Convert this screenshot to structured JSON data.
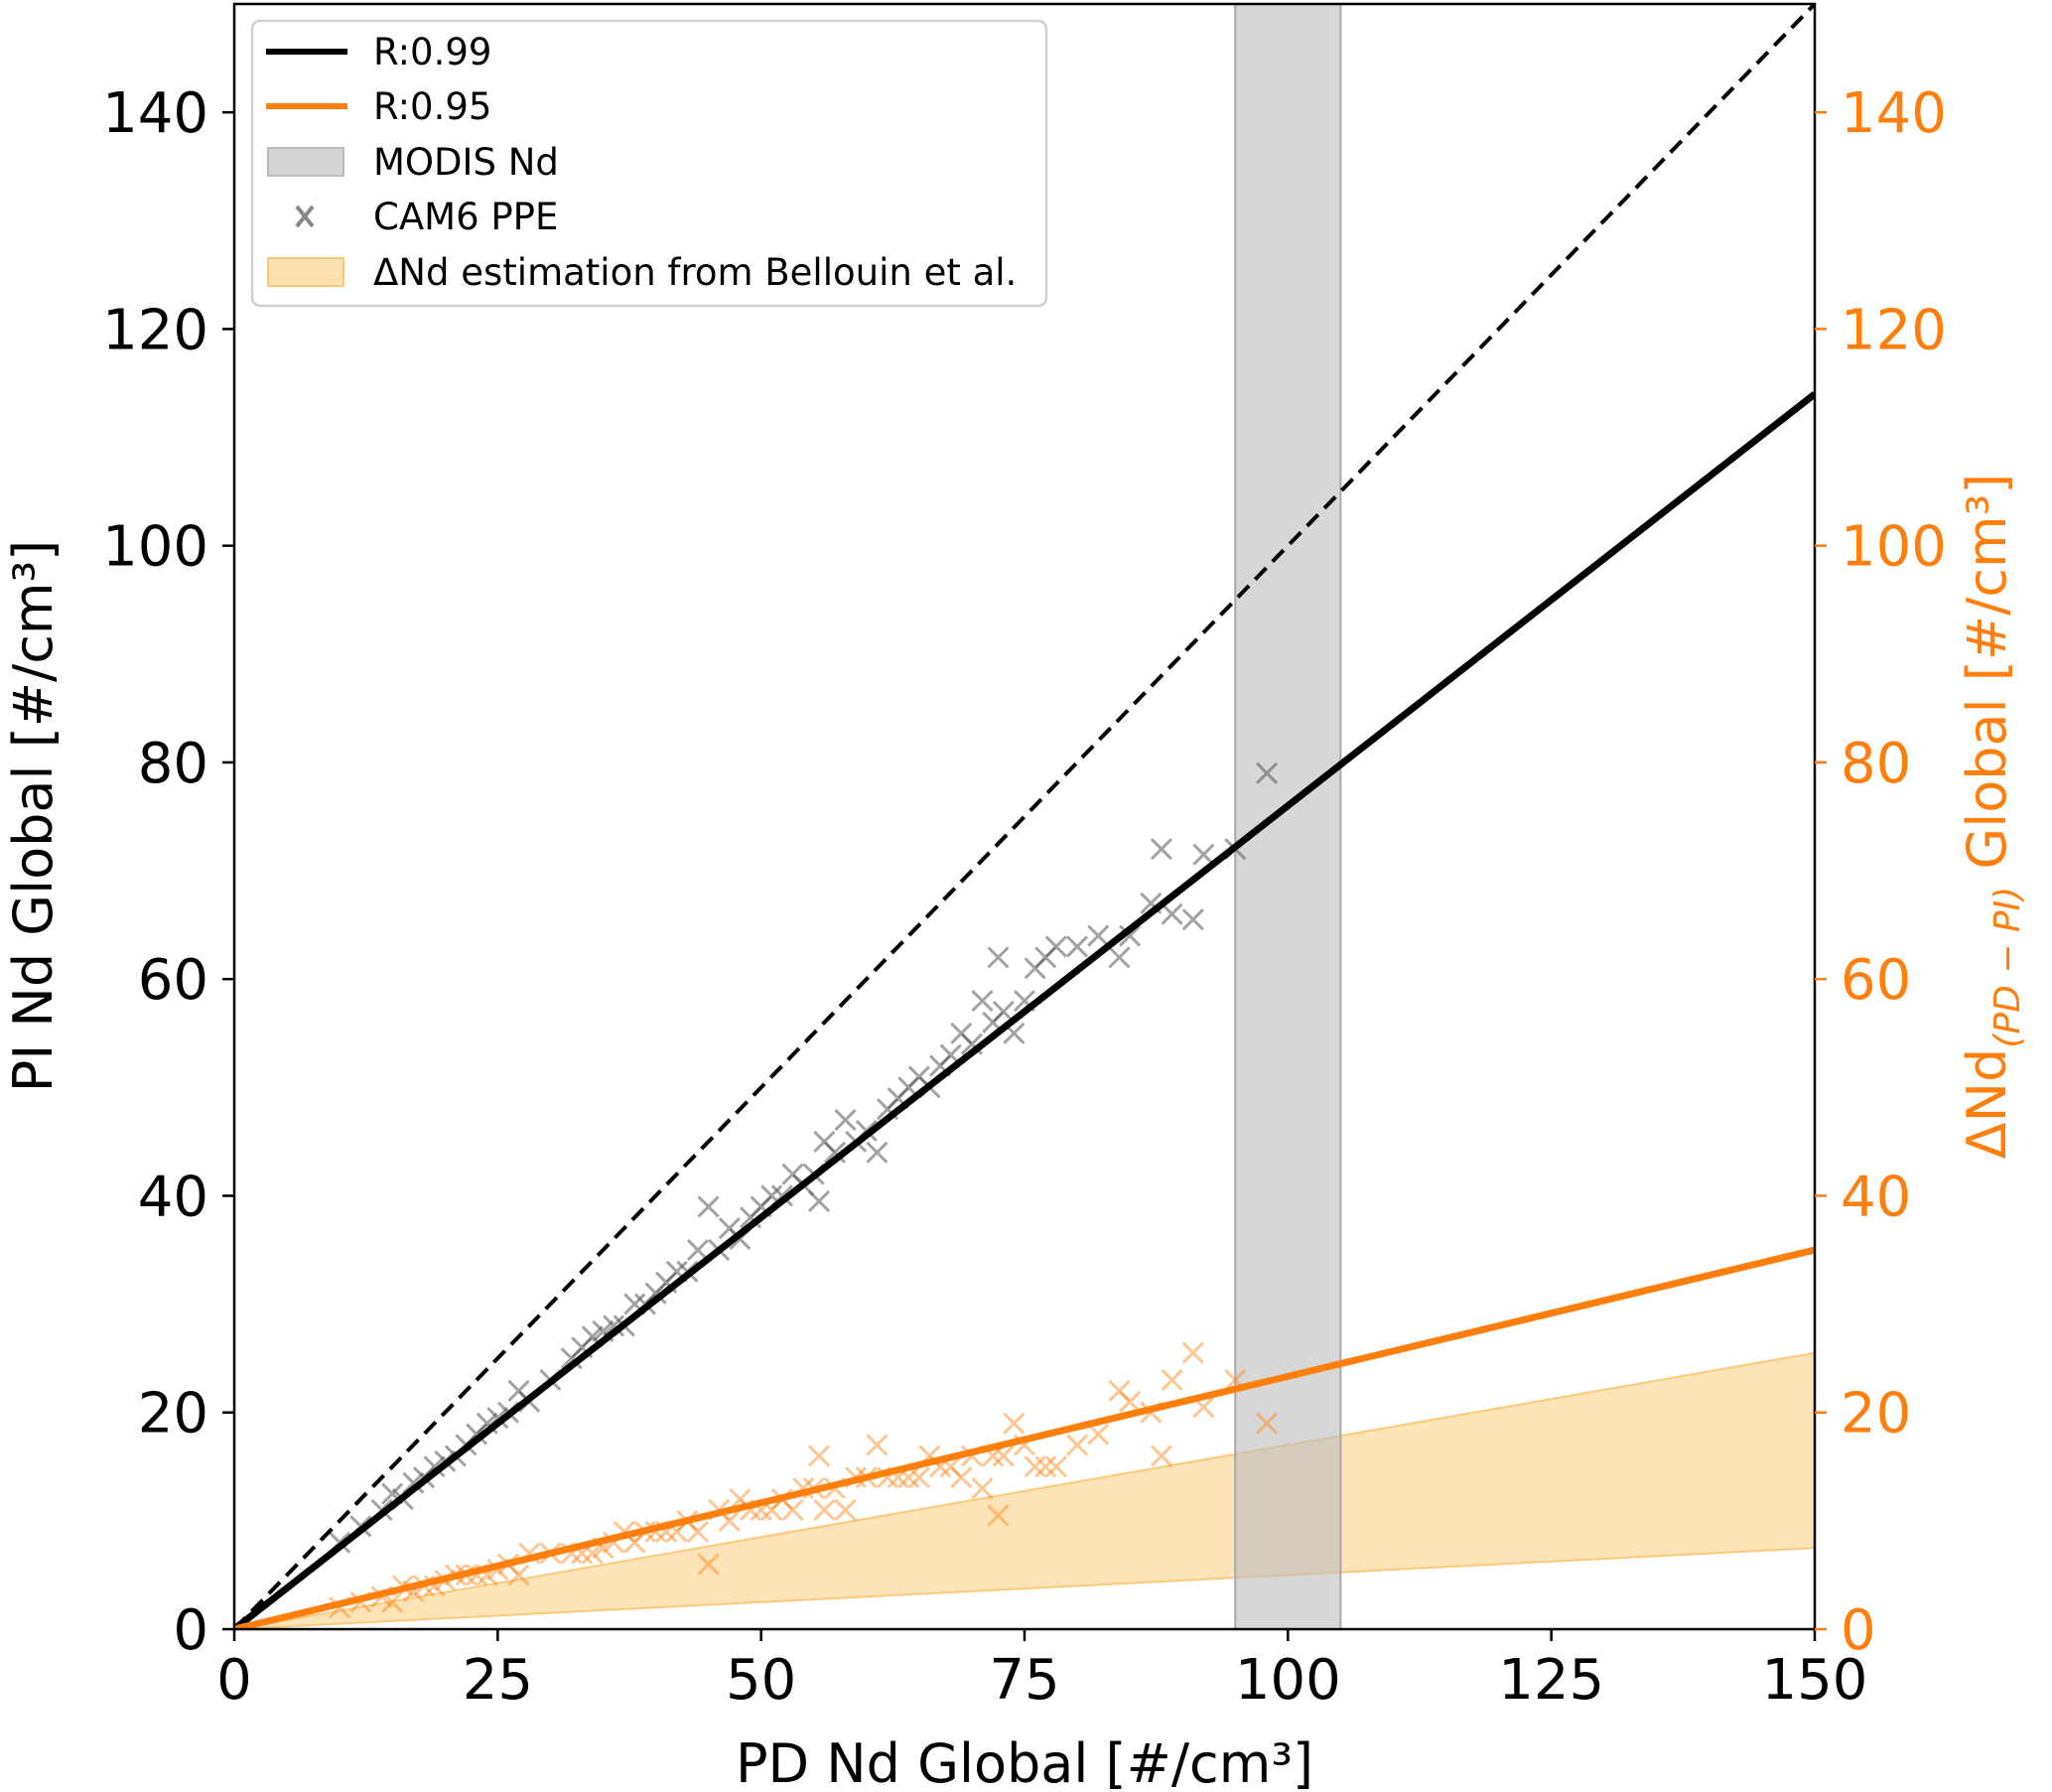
{
  "chart_data": {
    "type": "scatter",
    "title": "",
    "xlabel": "PD Nd Global [#/cm³]",
    "ylabel_left": "PI Nd Global [#/cm³]",
    "ylabel_right": {
      "main": "ΔNd",
      "sub": "(PD − PI)",
      "rest": " Global [#/cm³]"
    },
    "xlim": [
      0,
      150
    ],
    "ylim": [
      0,
      150
    ],
    "ylim_right": [
      0,
      150
    ],
    "x_ticks": [
      "0",
      "25",
      "50",
      "75",
      "100",
      "125",
      "150"
    ],
    "y_ticks": [
      "0",
      "20",
      "40",
      "60",
      "80",
      "100",
      "120",
      "140"
    ],
    "y_ticks_right": [
      "0",
      "20",
      "40",
      "60",
      "80",
      "100",
      "120",
      "140"
    ],
    "grid": false,
    "legend_placement": "top-left",
    "legend": [
      {
        "label": "R:0.99",
        "kind": "line",
        "color": "#000000"
      },
      {
        "label": "R:0.95",
        "kind": "line",
        "color": "#ff7f0e"
      },
      {
        "label": "MODIS Nd",
        "kind": "patch",
        "color": "#d6d6d6"
      },
      {
        "label": "CAM6 PPE",
        "kind": "marker",
        "color": "#808080"
      },
      {
        "label": "ΔNd estimation from Bellouin et al.",
        "kind": "patch",
        "color": "#fde0b0"
      }
    ],
    "one_to_one_line": {
      "x": [
        0,
        150
      ],
      "y": [
        0,
        150
      ],
      "style": "dashed",
      "color": "#000000"
    },
    "fit_pi": {
      "x": [
        0,
        150
      ],
      "y": [
        0,
        114
      ],
      "color": "#000000",
      "r": 0.99
    },
    "fit_delta": {
      "x": [
        0,
        150
      ],
      "y": [
        0,
        35
      ],
      "color": "#ff7f0e",
      "r": 0.95
    },
    "modis_band": {
      "xmin": 95,
      "xmax": 105,
      "color": "#d6d6d6"
    },
    "bellouin_band": {
      "x": [
        0,
        150
      ],
      "lower": [
        0,
        7.5
      ],
      "upper": [
        0,
        25.5
      ],
      "color": "#fde0b0"
    },
    "series": [
      {
        "name": "CAM6 PPE PI",
        "color": "#555555",
        "x": [
          10,
          12,
          14,
          15,
          16,
          17,
          18,
          19,
          20,
          21,
          22,
          23,
          24,
          25,
          26,
          27,
          28,
          30,
          32,
          33,
          34,
          35,
          36,
          37,
          38,
          39,
          40,
          41,
          42,
          43,
          44,
          45,
          46,
          47,
          48,
          49,
          50,
          51,
          52,
          53,
          54,
          55,
          55.5,
          56,
          57,
          58,
          59,
          60,
          61,
          62,
          63,
          64,
          65,
          66,
          67,
          68,
          69,
          70,
          71,
          72,
          72.5,
          73,
          74,
          75,
          76,
          77,
          78,
          80,
          82,
          84,
          85,
          87,
          88,
          89,
          91,
          92,
          95,
          98
        ],
        "y": [
          8,
          9.5,
          11,
          12.5,
          12,
          13.5,
          14,
          15,
          15.5,
          16,
          17,
          18,
          19,
          19.5,
          20,
          22,
          21,
          23,
          25,
          26,
          27,
          27.5,
          28,
          28,
          30,
          30,
          31,
          32,
          33,
          33,
          35,
          39,
          35,
          37,
          36,
          38,
          39,
          40,
          40,
          42,
          41,
          42,
          39.5,
          45,
          44,
          47,
          45,
          46,
          44,
          48,
          49,
          50,
          51,
          50,
          52,
          53,
          55,
          54,
          58,
          56,
          62,
          57,
          55,
          58,
          61,
          62,
          63,
          63,
          64,
          62,
          64,
          67,
          72,
          66,
          65.5,
          71.5,
          72,
          79
        ]
      },
      {
        "name": "CAM6 PPE ΔNd",
        "color": "#ff7f0e",
        "x": [
          10,
          12,
          14,
          15,
          16,
          17,
          18,
          19,
          20,
          21,
          22,
          23,
          24,
          25,
          26,
          27,
          28,
          30,
          32,
          33,
          34,
          35,
          36,
          37,
          38,
          39,
          40,
          41,
          42,
          43,
          44,
          45,
          46,
          47,
          48,
          49,
          50,
          51,
          52,
          53,
          54,
          55,
          55.5,
          56,
          57,
          58,
          59,
          60,
          61,
          62,
          63,
          64,
          65,
          66,
          67,
          68,
          69,
          70,
          71,
          72,
          72.5,
          73,
          74,
          75,
          76,
          77,
          78,
          80,
          82,
          84,
          85,
          87,
          88,
          89,
          91,
          92,
          95,
          98
        ],
        "y": [
          2,
          2.5,
          3,
          2.5,
          4,
          3.5,
          4,
          4,
          4.5,
          5,
          5,
          5,
          5,
          5.5,
          6,
          5,
          7,
          7,
          7,
          7,
          7,
          7.5,
          8,
          9,
          8,
          9,
          9,
          9,
          9,
          10,
          9,
          6,
          11,
          10,
          12,
          11,
          11,
          11,
          12,
          11,
          13,
          13,
          16,
          11,
          13,
          11,
          14,
          14,
          17,
          14,
          14,
          14,
          14,
          16,
          15,
          15,
          14,
          16,
          13,
          16,
          10.5,
          16,
          19,
          17,
          15,
          15,
          15,
          17,
          18,
          22,
          21,
          20,
          16,
          23,
          25.5,
          20.5,
          23,
          19
        ]
      }
    ]
  }
}
